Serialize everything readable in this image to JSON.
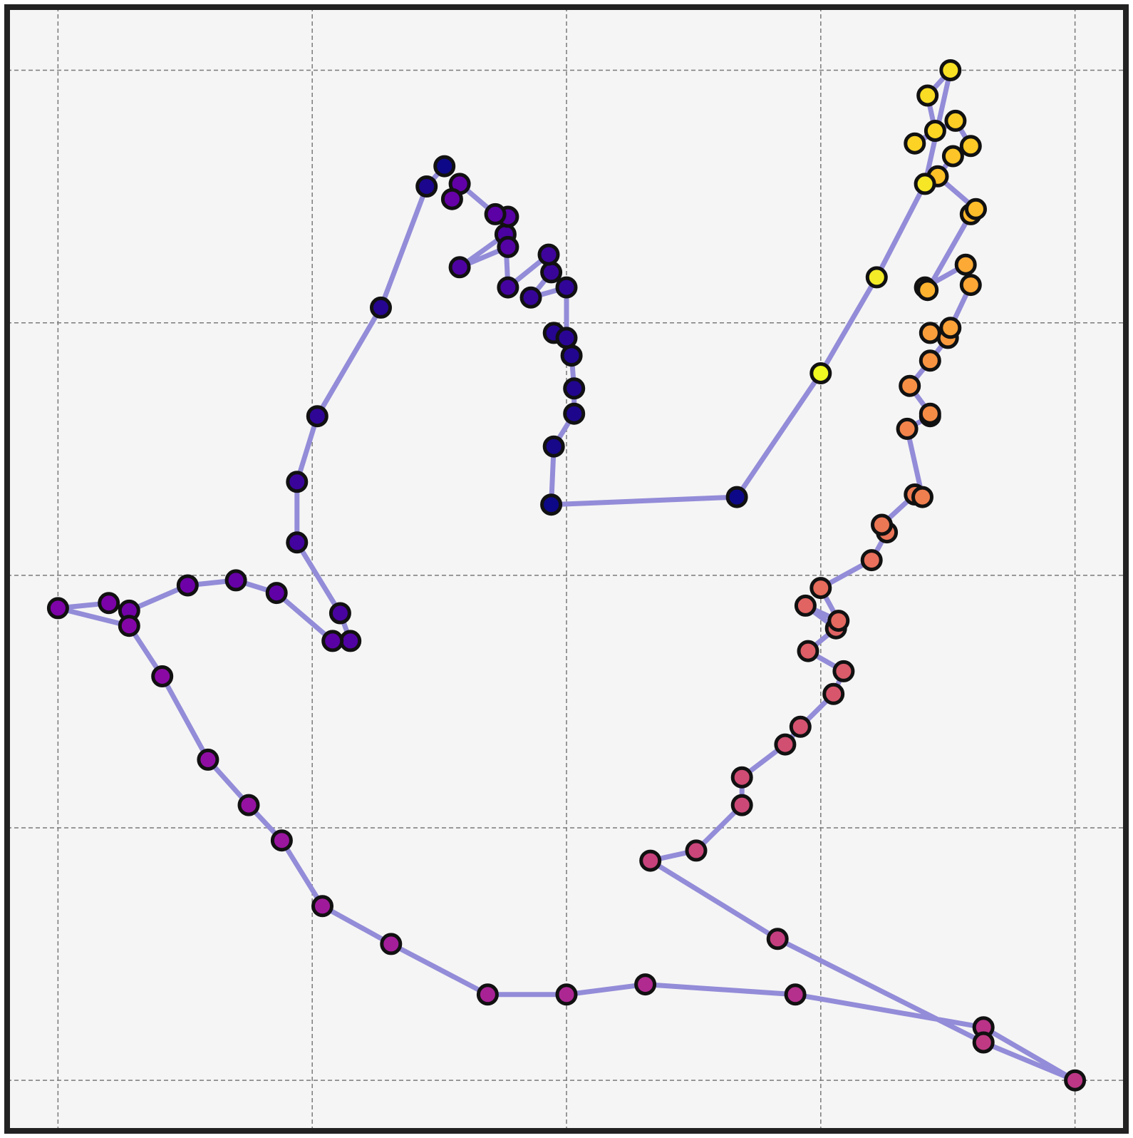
{
  "chart_data": {
    "type": "scatter",
    "title": "",
    "xlabel": "",
    "ylabel": "",
    "xlim": [
      -0.2,
      4.2
    ],
    "ylim": [
      -0.2,
      4.25
    ],
    "xticks": [
      0,
      1,
      2,
      3,
      4
    ],
    "yticks": [
      0,
      1,
      2,
      3,
      4
    ],
    "grid": true,
    "tick_labels_visible": false,
    "legend": "none",
    "colormap": "plasma",
    "line_color": "#938cd8",
    "background_color": "#f5f5f5",
    "border_color": "#222222",
    "series": [
      {
        "x": [
          1.52,
          1.45,
          1.27,
          1.02,
          0.94,
          0.94,
          1.11,
          1.15,
          1.08,
          0.86,
          0.7,
          0.51,
          0.28,
          0.2,
          0.0,
          0.28,
          0.41,
          0.59,
          0.75,
          0.88,
          1.04,
          1.31,
          1.69,
          2.0,
          2.31,
          2.9,
          3.64,
          4.0,
          3.64,
          2.83,
          2.33,
          2.51,
          2.69,
          2.69,
          2.86,
          2.92,
          3.05,
          3.09,
          2.95,
          3.06,
          2.94,
          3.07,
          3.0,
          3.2,
          3.26,
          3.24,
          3.37,
          3.4,
          3.34,
          3.43,
          3.43,
          3.35,
          3.43,
          3.5,
          3.43,
          3.51,
          3.59,
          3.57,
          3.41,
          3.42,
          3.59,
          3.61,
          3.46,
          3.52,
          3.59,
          3.53,
          3.37,
          3.45,
          3.42,
          3.51,
          3.41,
          3.22,
          3.0,
          2.67,
          1.94,
          1.95,
          2.03,
          2.03,
          2.02,
          1.95,
          2.0,
          2.0,
          1.86,
          1.94,
          1.93,
          1.77,
          1.76,
          1.58,
          1.77,
          1.77,
          1.72,
          1.58,
          1.55
        ],
        "y": [
          3.62,
          3.54,
          3.06,
          2.63,
          2.37,
          2.13,
          1.85,
          1.74,
          1.74,
          1.93,
          1.98,
          1.96,
          1.86,
          1.89,
          1.87,
          1.8,
          1.6,
          1.27,
          1.09,
          0.95,
          0.69,
          0.54,
          0.34,
          0.34,
          0.38,
          0.34,
          0.21,
          0.0,
          0.15,
          0.56,
          0.87,
          0.91,
          1.09,
          1.2,
          1.33,
          1.4,
          1.53,
          1.62,
          1.7,
          1.79,
          1.88,
          1.82,
          1.95,
          2.06,
          2.17,
          2.2,
          2.32,
          2.31,
          2.58,
          2.63,
          2.64,
          2.75,
          2.85,
          2.94,
          2.96,
          2.98,
          3.15,
          3.23,
          3.14,
          3.13,
          3.43,
          3.45,
          3.58,
          3.66,
          3.7,
          3.8,
          3.71,
          3.76,
          3.9,
          4.0,
          3.55,
          3.18,
          2.8,
          2.31,
          2.28,
          2.51,
          2.64,
          2.74,
          2.87,
          2.96,
          2.94,
          3.14,
          3.1,
          3.2,
          3.27,
          3.14,
          3.35,
          3.22,
          3.3,
          3.42,
          3.43,
          3.55,
          3.49
        ],
        "point_colors": [
          "#0d0887",
          "#1b068d",
          "#260591",
          "#2f0596",
          "#3a049a",
          "#43039e",
          "#4903a0",
          "#5102a3",
          "#5901a5",
          "#5f01a6",
          "#6600a7",
          "#6e00a8",
          "#7301a8",
          "#7a02a8",
          "#7e03a8",
          "#8405a7",
          "#8a09a5",
          "#900da4",
          "#9511a1",
          "#9a169f",
          "#9f1a9b",
          "#a41e9a",
          "#a82296",
          "#ad2793",
          "#b12a90",
          "#b52f8c",
          "#ba3388",
          "#bd3786",
          "#c03a83",
          "#c43e7f",
          "#c7427c",
          "#ca457a",
          "#cc4977",
          "#cf4c74",
          "#d14f71",
          "#d5536f",
          "#d7566c",
          "#da5b69",
          "#dd5e66",
          "#df6263",
          "#e16462",
          "#e3685f",
          "#e66c5c",
          "#e8705c",
          "#ea7457",
          "#ec7754",
          "#ee7b51",
          "#f07f4f",
          "#f2844b",
          "#f48849",
          "#f58c46",
          "#f79044",
          "#f89441",
          "#f99a3e",
          "#fa9e3b",
          "#fba238",
          "#fca636",
          "#fcaa35",
          "#fdae32",
          "#fdb32f",
          "#fdb72d",
          "#fdbc2a",
          "#fdc128",
          "#fdc527",
          "#fdca26",
          "#fccd25",
          "#fcd225",
          "#fbd724",
          "#f9dc24",
          "#f8e125",
          "#f6e626",
          "#f3eb27",
          "#f0f921",
          "#0d0887",
          "#0d0887",
          "#170789",
          "#1e068c",
          "#21058d",
          "#220690",
          "#260591",
          "#2a0593",
          "#310597",
          "#360597",
          "#390598",
          "#3e049c",
          "#44039e",
          "#4a02a0",
          "#4f02a2",
          "#5402a3",
          "#5801a4",
          "#5c01a5",
          "#6100a7",
          "#6600a7"
        ]
      }
    ]
  }
}
